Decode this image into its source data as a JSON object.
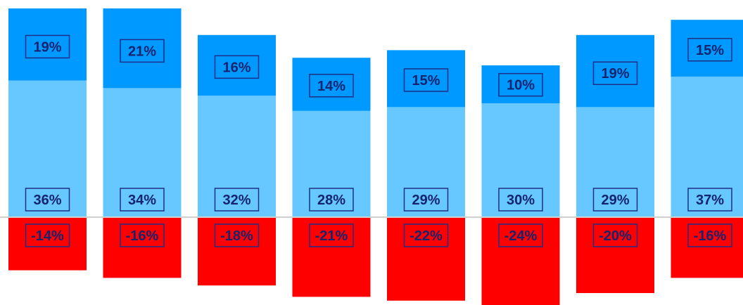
{
  "chart_data": {
    "type": "bar",
    "stacked": true,
    "categories": [
      "",
      "",
      "",
      "",
      "",
      "",
      "",
      ""
    ],
    "series": [
      {
        "values": [
          36,
          34,
          32,
          28,
          29,
          30,
          29,
          37
        ],
        "labels": [
          "36%",
          "34%",
          "32%",
          "28%",
          "29%",
          "30%",
          "29%",
          "37%"
        ],
        "color": "#66c8ff"
      },
      {
        "values": [
          19,
          21,
          16,
          14,
          15,
          10,
          19,
          15
        ],
        "labels": [
          "19%",
          "21%",
          "16%",
          "14%",
          "15%",
          "10%",
          "19%",
          "15%"
        ],
        "color": "#0099ff"
      },
      {
        "values": [
          -14,
          -16,
          -18,
          -21,
          -22,
          -24,
          -20,
          -16
        ],
        "labels": [
          "-14%",
          "-16%",
          "-18%",
          "-21%",
          "-22%",
          "-24%",
          "-20%",
          "-16%"
        ],
        "color": "#ff0000"
      }
    ],
    "ylim": [
      -24,
      55
    ],
    "grid": false,
    "legend": "none",
    "zero_line_color": "#d0d0d0",
    "label_color": "#14246e"
  }
}
